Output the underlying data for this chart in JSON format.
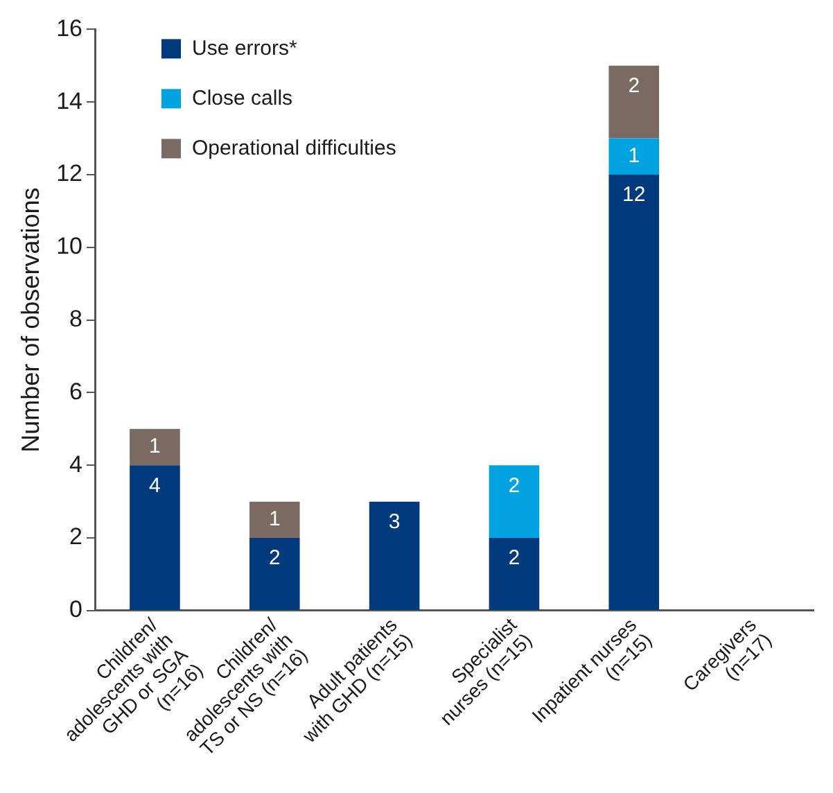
{
  "chart_data": {
    "type": "bar",
    "stacked": true,
    "ylabel": "Number of observations",
    "categories": [
      "Children/ adolescents with GHD or SGA (n=16)",
      "Children/ adolescents with TS or NS (n=16)",
      "Adult patients with GHD (n=15)",
      "Specialist nurses (n=15)",
      "Inpatient nurses (n=15)",
      "Caregivers (n=17)"
    ],
    "series": [
      {
        "name": "Use errors*",
        "color": "#003a7d",
        "values": [
          4,
          2,
          3,
          2,
          12,
          0
        ],
        "value_labels": [
          "4",
          "2",
          "3",
          "2",
          "12",
          null
        ]
      },
      {
        "name": "Close calls",
        "color": "#00a3e0",
        "values": [
          0,
          0,
          0,
          2,
          1,
          0
        ],
        "value_labels": [
          null,
          null,
          null,
          "2",
          "1",
          null
        ]
      },
      {
        "name": "Operational difficulties",
        "color": "#7a6a62",
        "values": [
          1,
          1,
          0,
          0,
          2,
          0
        ],
        "value_labels": [
          "1",
          "1",
          null,
          null,
          "2",
          null
        ]
      }
    ],
    "ylim": [
      0,
      16
    ],
    "yticks": [
      0,
      2,
      4,
      6,
      8,
      10,
      12,
      14,
      16
    ],
    "grid": false,
    "legend": "top left"
  }
}
